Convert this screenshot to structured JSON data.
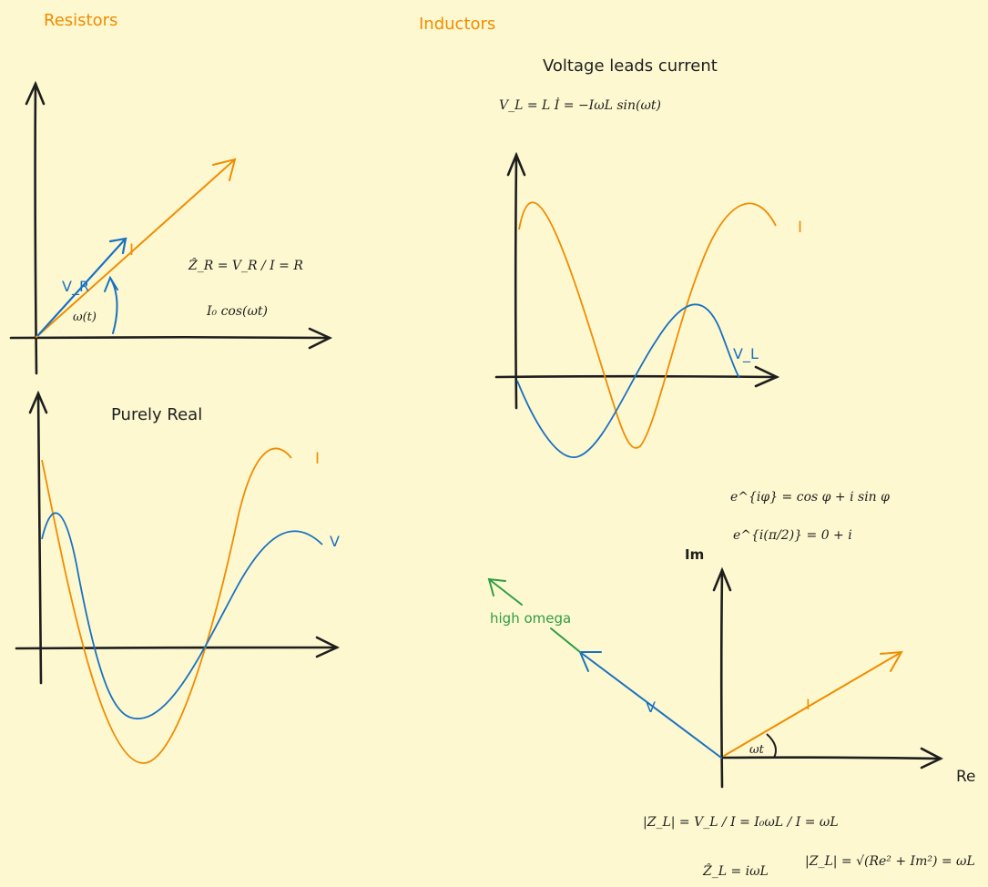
{
  "colors": {
    "background": "#fdf8d0",
    "ink": "#1e1e1e",
    "orange": "#f08c00",
    "blue": "#1971c2",
    "green": "#2f9e44"
  },
  "resistors": {
    "heading": "Resistors",
    "phasor": {
      "current_label": "I",
      "voltage_label": "V_R",
      "angle_label": "ω(t)",
      "impedance_eq": "Ẑ_R = V_R / I = R",
      "current_eq": "I₀ cos(ωt)"
    },
    "waveform": {
      "title": "Purely Real",
      "current_label": "I",
      "voltage_label": "V"
    }
  },
  "inductors": {
    "heading": "Inductors",
    "waveform": {
      "title": "Voltage leads current",
      "voltage_eq": "V_L = L İ = −IωL sin(ωt)",
      "current_label": "I",
      "voltage_label": "V_L"
    },
    "euler": {
      "line1": "e^{iφ} = cos φ + i sin φ",
      "line2": "e^{i(π/2)} = 0 + i"
    },
    "phasor": {
      "imag_axis": "Im",
      "real_axis": "Re",
      "high_omega": "high omega",
      "voltage_label": "V",
      "current_label": "I",
      "angle_label": "ωt"
    },
    "magnitude_eq": "|Z_L| = V_L / I = I₀ωL / I = ωL",
    "impedance_eq": "Ẑ_L = iωL",
    "pythag_eq": "|Z_L| = √(Re² + Im²) = ωL"
  }
}
